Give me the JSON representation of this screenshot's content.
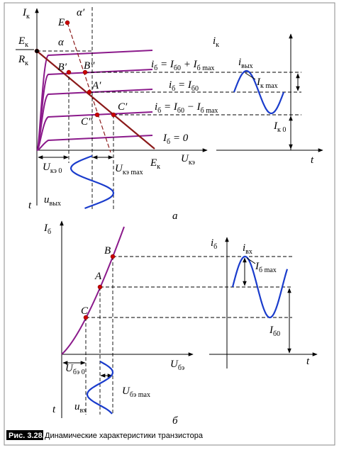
{
  "panel_a": {
    "labels": {
      "ik_axis": [
        {
          "t": "I"
        },
        {
          "s": "к"
        }
      ],
      "ek": [
        {
          "t": "E"
        },
        {
          "s": "к"
        }
      ],
      "rk": [
        {
          "t": "R"
        },
        {
          "s": "к"
        }
      ],
      "e": [
        {
          "t": "E"
        }
      ],
      "alpha_prime": [
        {
          "t": "α′"
        }
      ],
      "alpha": [
        {
          "t": "α"
        }
      ],
      "b1": [
        {
          "t": "B′"
        }
      ],
      "b2": [
        {
          "t": "B″"
        }
      ],
      "a1": [
        {
          "t": "A′"
        }
      ],
      "c2": [
        {
          "t": "C″"
        }
      ],
      "c1": [
        {
          "t": "C′"
        }
      ],
      "curve_max": [
        {
          "t": "i"
        },
        {
          "s": "б"
        },
        {
          "t": " = I"
        },
        {
          "s": "б0"
        },
        {
          "t": " + I"
        },
        {
          "s": "б max"
        }
      ],
      "curve_0": [
        {
          "t": "i"
        },
        {
          "s": "б"
        },
        {
          "t": " = I"
        },
        {
          "s": "б0"
        }
      ],
      "curve_min": [
        {
          "t": "i"
        },
        {
          "s": "б"
        },
        {
          "t": " = I"
        },
        {
          "s": "б0"
        },
        {
          "t": " − I"
        },
        {
          "s": "б max"
        }
      ],
      "curve_zero": [
        {
          "t": "I"
        },
        {
          "s": "б"
        },
        {
          "t": " = 0"
        }
      ],
      "ek_axis": [
        {
          "t": "E"
        },
        {
          "s": "к"
        }
      ],
      "uke_axis": [
        {
          "t": "U"
        },
        {
          "s": "кэ"
        }
      ],
      "uke0": [
        {
          "t": "U"
        },
        {
          "s": "кэ 0"
        }
      ],
      "ukemax": [
        {
          "t": "U"
        },
        {
          "s": "кэ max"
        }
      ],
      "uout": [
        {
          "t": "u"
        },
        {
          "s": "вых"
        }
      ],
      "t": [
        {
          "t": "t"
        }
      ],
      "ik": [
        {
          "t": "i"
        },
        {
          "s": "к"
        }
      ],
      "iout": [
        {
          "t": "i"
        },
        {
          "s": "вых"
        }
      ],
      "ikmax": [
        {
          "t": "I"
        },
        {
          "s": "к max"
        }
      ],
      "ik0": [
        {
          "t": "I"
        },
        {
          "s": "к 0"
        }
      ],
      "t2": [
        {
          "t": "t"
        }
      ],
      "caption": [
        {
          "t": "а"
        }
      ]
    }
  },
  "panel_b": {
    "labels": {
      "ib_axis": [
        {
          "t": "I"
        },
        {
          "s": "б"
        }
      ],
      "b": [
        {
          "t": "B"
        }
      ],
      "a": [
        {
          "t": "A"
        }
      ],
      "c": [
        {
          "t": "C"
        }
      ],
      "ube_axis": [
        {
          "t": "U"
        },
        {
          "s": "бэ"
        }
      ],
      "ube0": [
        {
          "t": "U"
        },
        {
          "s": "бэ 0"
        }
      ],
      "ubemax": [
        {
          "t": "U"
        },
        {
          "s": "бэ max"
        }
      ],
      "uin": [
        {
          "t": "u"
        },
        {
          "s": "вх"
        }
      ],
      "t": [
        {
          "t": "t"
        }
      ],
      "ib": [
        {
          "t": "i"
        },
        {
          "s": "б"
        }
      ],
      "iin": [
        {
          "t": "i"
        },
        {
          "s": "вх"
        }
      ],
      "ibmax": [
        {
          "t": "I"
        },
        {
          "s": "б max"
        }
      ],
      "ib0": [
        {
          "t": "I"
        },
        {
          "s": "б0"
        }
      ],
      "t2": [
        {
          "t": "t"
        }
      ],
      "caption": [
        {
          "t": "б"
        }
      ]
    }
  },
  "figure": {
    "number": "Рис. 3.28.",
    "caption": "Динамические характеристики транзистора"
  }
}
